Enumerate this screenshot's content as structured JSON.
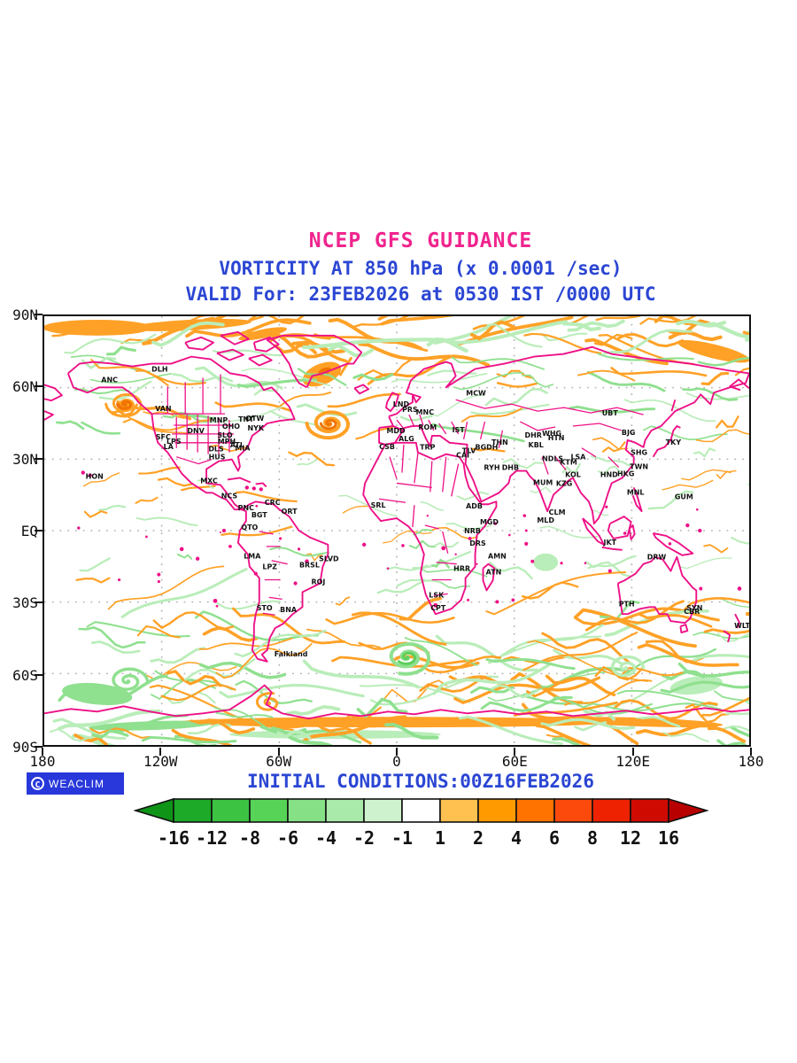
{
  "titles": {
    "main": "NCEP GFS GUIDANCE",
    "sub": "VORTICITY AT 850 hPa (x 0.0001 /sec)",
    "valid": "VALID For: 23FEB2026 at 0530 IST /0000 UTC",
    "initial": "INITIAL CONDITIONS:00Z16FEB2026"
  },
  "logo": {
    "symbol": "C",
    "text": "WEACLIM"
  },
  "axes": {
    "lat_labels": [
      "90N",
      "60N",
      "30N",
      "EQ",
      "30S",
      "60S",
      "90S"
    ],
    "lon_labels": [
      "180",
      "120W",
      "60W",
      "0",
      "60E",
      "120E",
      "180"
    ]
  },
  "colorbar": {
    "labels": [
      "-16",
      "-12",
      "-8",
      "-6",
      "-4",
      "-2",
      "-1",
      "1",
      "2",
      "4",
      "6",
      "8",
      "12",
      "16"
    ],
    "segment_colors": [
      "#0f9418",
      "#1caa28",
      "#3bc341",
      "#57d457",
      "#86e086",
      "#a9e9a9",
      "#cdf2cd",
      "#ffffff",
      "#ffc14f",
      "#ff9a00",
      "#ff7300",
      "#fc4a0d",
      "#ee2200",
      "#cf0a00",
      "#b80000"
    ]
  },
  "palette": {
    "magenta": "#f0248e",
    "blue": "#2b46d3",
    "coast": "#ee1087",
    "orange": "#ffa126",
    "orange_dark": "#f07300",
    "green": "#8fe08f",
    "green_light": "#b9edb9",
    "green_dark": "#5ccf5c",
    "grid": "#b3b3b3",
    "logo_bg": "#2838da",
    "text_black": "#111111"
  },
  "stations": [
    [
      "ANC",
      74,
      75
    ],
    [
      "DLH",
      131,
      63
    ],
    [
      "VAN",
      135,
      108
    ],
    [
      "SFC",
      135,
      140
    ],
    [
      "LPS",
      147,
      145
    ],
    [
      "LA",
      141,
      151
    ],
    [
      "DNV",
      172,
      133
    ],
    [
      "MNP",
      198,
      121
    ],
    [
      "OHO",
      212,
      128
    ],
    [
      "TNT",
      229,
      120
    ],
    [
      "OTW",
      239,
      119
    ],
    [
      "NYK",
      240,
      130
    ],
    [
      "SLO",
      205,
      138
    ],
    [
      "MPH",
      207,
      145
    ],
    [
      "ATL",
      219,
      149
    ],
    [
      "DLS",
      195,
      154
    ],
    [
      "HUS",
      196,
      163
    ],
    [
      "MIA",
      225,
      153
    ],
    [
      "MXC",
      187,
      190
    ],
    [
      "HON",
      57,
      185
    ],
    [
      "NCS",
      210,
      207
    ],
    [
      "PNC",
      229,
      221
    ],
    [
      "CRC",
      259,
      215
    ],
    [
      "BGT",
      244,
      229
    ],
    [
      "ORT",
      278,
      225
    ],
    [
      "QTO",
      233,
      243
    ],
    [
      "LMA",
      236,
      276
    ],
    [
      "LPZ",
      256,
      288
    ],
    [
      "BRSL",
      301,
      286
    ],
    [
      "SLVD",
      323,
      279
    ],
    [
      "ROJ",
      311,
      305
    ],
    [
      "STO",
      250,
      335
    ],
    [
      "BNA",
      277,
      337
    ],
    [
      "Falkland",
      280,
      387
    ],
    [
      "SRL",
      379,
      218
    ],
    [
      "LND",
      405,
      103
    ],
    [
      "PRS",
      415,
      109
    ],
    [
      "MNC",
      432,
      112
    ],
    [
      "MDD",
      399,
      133
    ],
    [
      "ALG",
      411,
      142
    ],
    [
      "CSB",
      389,
      151
    ],
    [
      "ROM",
      435,
      129
    ],
    [
      "IST",
      470,
      132
    ],
    [
      "TRP",
      435,
      152
    ],
    [
      "TLV",
      482,
      156
    ],
    [
      "CAI",
      475,
      161
    ],
    [
      "BGDH",
      502,
      152
    ],
    [
      "THN",
      517,
      146
    ],
    [
      "RYH",
      508,
      175
    ],
    [
      "DHB",
      529,
      175
    ],
    [
      "DHR",
      555,
      138
    ],
    [
      "KBL",
      558,
      149
    ],
    [
      "MCW",
      490,
      90
    ],
    [
      "ADB",
      488,
      219
    ],
    [
      "MGD",
      505,
      237
    ],
    [
      "NRB",
      486,
      247
    ],
    [
      "DRS",
      492,
      261
    ],
    [
      "AMN",
      514,
      276
    ],
    [
      "ATN",
      510,
      294
    ],
    [
      "HRR",
      474,
      290
    ],
    [
      "LSK",
      445,
      320
    ],
    [
      "CPT",
      447,
      335
    ],
    [
      "WHG",
      576,
      136
    ],
    [
      "HTN",
      581,
      141
    ],
    [
      "NDLS",
      577,
      165
    ],
    [
      "KTM",
      595,
      169
    ],
    [
      "LSA",
      606,
      163
    ],
    [
      "KOL",
      600,
      183
    ],
    [
      "MUM",
      566,
      192
    ],
    [
      "KZG",
      590,
      193
    ],
    [
      "CLM",
      582,
      226
    ],
    [
      "MLD",
      569,
      235
    ],
    [
      "UBT",
      642,
      113
    ],
    [
      "BJG",
      663,
      135
    ],
    [
      "TKY",
      714,
      146
    ],
    [
      "SHG",
      675,
      158
    ],
    [
      "TWN",
      675,
      174
    ],
    [
      "HKG",
      660,
      182
    ],
    [
      "HND",
      641,
      183
    ],
    [
      "MNL",
      671,
      203
    ],
    [
      "GUM",
      726,
      208
    ],
    [
      "JKT",
      642,
      260
    ],
    [
      "DRW",
      695,
      277
    ],
    [
      "PTH",
      661,
      330
    ],
    [
      "SYN",
      738,
      335
    ],
    [
      "CBR",
      735,
      339
    ],
    [
      "WLT",
      792,
      355
    ]
  ],
  "chart_data": {
    "type": "heatmap",
    "title": "NCEP GFS GUIDANCE",
    "subtitle": "VORTICITY AT 850 hPa (x 0.0001 /sec)",
    "valid_line": "VALID For: 23FEB2026 at 0530 IST /0000 UTC",
    "initial_line": "INITIAL CONDITIONS:00Z16FEB2026",
    "x_tick_labels": [
      "180",
      "120W",
      "60W",
      "0",
      "60E",
      "120E",
      "180"
    ],
    "y_tick_labels": [
      "90N",
      "60N",
      "30N",
      "EQ",
      "30S",
      "60S",
      "90S"
    ],
    "x_range_deg": [
      -180,
      180
    ],
    "y_range_deg": [
      -90,
      90
    ],
    "grid": "dotted every 30 degrees",
    "legend_position": "bottom",
    "units": "x 0.0001 /sec",
    "colorbar_levels": [
      -16,
      -12,
      -8,
      -6,
      -4,
      -2,
      -1,
      1,
      2,
      4,
      6,
      8,
      12,
      16
    ],
    "colorbar_colors": [
      "#0f9418",
      "#1caa28",
      "#3bc341",
      "#57d457",
      "#86e086",
      "#a9e9a9",
      "#cdf2cd",
      "#ffffff",
      "#ffc14f",
      "#ff9a00",
      "#ff7300",
      "#fc4a0d",
      "#ee2200",
      "#cf0a00",
      "#b80000"
    ]
  }
}
